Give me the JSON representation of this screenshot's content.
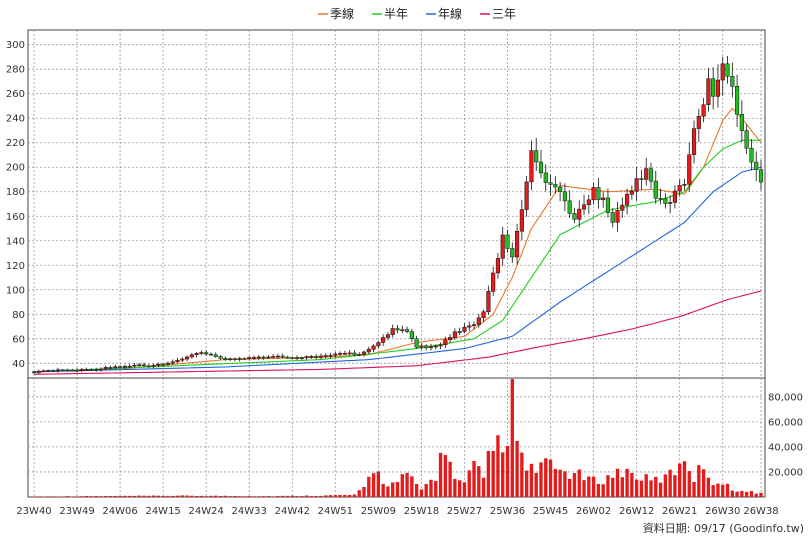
{
  "chart_data": {
    "type": "candlestick",
    "legend": {
      "placement": "top-center",
      "items": [
        {
          "name": "季線",
          "color": "#e8782a"
        },
        {
          "name": "半年",
          "color": "#22cc22"
        },
        {
          "name": "年線",
          "color": "#2266dd"
        },
        {
          "name": "三年",
          "color": "#dd1166"
        }
      ]
    },
    "price_axis": {
      "ticks": [
        40,
        60,
        80,
        100,
        120,
        140,
        160,
        180,
        200,
        220,
        240,
        260,
        280,
        300
      ],
      "range": [
        28,
        312
      ],
      "grid": true
    },
    "volume_axis": {
      "ticks": [
        "20,000",
        "40,000",
        "60,000",
        "80,000"
      ],
      "tick_values": [
        20000,
        40000,
        60000,
        80000
      ],
      "range": [
        0,
        95000
      ],
      "position": "right"
    },
    "x_ticks": [
      "23W40",
      "23W49",
      "24W06",
      "24W15",
      "24W24",
      "24W33",
      "24W42",
      "24W51",
      "25W09",
      "25W18",
      "25W27",
      "25W36",
      "25W45",
      "26W02",
      "26W12",
      "26W21",
      "26W30",
      "26W38"
    ],
    "x_tick_index": [
      0,
      9,
      18,
      27,
      36,
      45,
      54,
      63,
      72,
      81,
      90,
      99,
      108,
      117,
      126,
      135,
      144,
      152
    ],
    "weeks": 153,
    "close_anchors": [
      [
        0,
        33
      ],
      [
        10,
        35
      ],
      [
        20,
        37
      ],
      [
        30,
        42
      ],
      [
        35,
        48
      ],
      [
        40,
        44
      ],
      [
        50,
        45
      ],
      [
        60,
        46
      ],
      [
        68,
        48
      ],
      [
        72,
        58
      ],
      [
        75,
        68
      ],
      [
        78,
        65
      ],
      [
        80,
        52
      ],
      [
        85,
        56
      ],
      [
        88,
        66
      ],
      [
        92,
        70
      ],
      [
        94,
        80
      ],
      [
        96,
        112
      ],
      [
        98,
        145
      ],
      [
        100,
        130
      ],
      [
        102,
        170
      ],
      [
        104,
        210
      ],
      [
        106,
        190
      ],
      [
        110,
        175
      ],
      [
        113,
        160
      ],
      [
        117,
        185
      ],
      [
        119,
        170
      ],
      [
        121,
        155
      ],
      [
        125,
        180
      ],
      [
        128,
        200
      ],
      [
        130,
        180
      ],
      [
        133,
        172
      ],
      [
        136,
        185
      ],
      [
        138,
        230
      ],
      [
        140,
        250
      ],
      [
        141,
        280
      ],
      [
        142,
        260
      ],
      [
        144,
        285
      ],
      [
        146,
        270
      ],
      [
        148,
        230
      ],
      [
        150,
        200
      ],
      [
        151,
        195
      ],
      [
        152,
        183
      ]
    ],
    "sma_anchors": {
      "季線": [
        [
          0,
          33
        ],
        [
          20,
          36
        ],
        [
          40,
          43
        ],
        [
          60,
          45
        ],
        [
          70,
          47
        ],
        [
          80,
          57
        ],
        [
          90,
          62
        ],
        [
          96,
          80
        ],
        [
          100,
          110
        ],
        [
          104,
          150
        ],
        [
          110,
          185
        ],
        [
          120,
          180
        ],
        [
          130,
          182
        ],
        [
          136,
          178
        ],
        [
          140,
          200
        ],
        [
          144,
          238
        ],
        [
          146,
          248
        ],
        [
          148,
          240
        ],
        [
          152,
          220
        ]
      ],
      "半年": [
        [
          0,
          33
        ],
        [
          30,
          38
        ],
        [
          60,
          43
        ],
        [
          80,
          52
        ],
        [
          92,
          60
        ],
        [
          98,
          75
        ],
        [
          104,
          110
        ],
        [
          110,
          145
        ],
        [
          120,
          165
        ],
        [
          130,
          172
        ],
        [
          136,
          180
        ],
        [
          140,
          200
        ],
        [
          144,
          215
        ],
        [
          148,
          222
        ],
        [
          152,
          222
        ]
      ],
      "年線": [
        [
          0,
          33
        ],
        [
          40,
          37
        ],
        [
          70,
          43
        ],
        [
          90,
          52
        ],
        [
          100,
          62
        ],
        [
          110,
          90
        ],
        [
          120,
          115
        ],
        [
          130,
          140
        ],
        [
          136,
          155
        ],
        [
          142,
          180
        ],
        [
          148,
          196
        ],
        [
          152,
          200
        ]
      ],
      "三年": [
        [
          0,
          31
        ],
        [
          30,
          33
        ],
        [
          60,
          35
        ],
        [
          80,
          38
        ],
        [
          95,
          45
        ],
        [
          105,
          53
        ],
        [
          115,
          60
        ],
        [
          125,
          68
        ],
        [
          135,
          78
        ],
        [
          145,
          92
        ],
        [
          152,
          99
        ]
      ]
    },
    "volume_anchors": [
      [
        0,
        500
      ],
      [
        30,
        1200
      ],
      [
        50,
        800
      ],
      [
        62,
        1500
      ],
      [
        67,
        2000
      ],
      [
        69,
        8000
      ],
      [
        71,
        28000
      ],
      [
        73,
        15000
      ],
      [
        75,
        12000
      ],
      [
        78,
        20000
      ],
      [
        81,
        7000
      ],
      [
        84,
        20000
      ],
      [
        86,
        50000
      ],
      [
        88,
        15000
      ],
      [
        90,
        12000
      ],
      [
        92,
        28000
      ],
      [
        94,
        18000
      ],
      [
        96,
        58000
      ],
      [
        98,
        35000
      ],
      [
        99,
        48000
      ],
      [
        100,
        90000
      ],
      [
        101,
        58000
      ],
      [
        103,
        22000
      ],
      [
        106,
        30000
      ],
      [
        110,
        25000
      ],
      [
        114,
        20000
      ],
      [
        117,
        15000
      ],
      [
        120,
        18000
      ],
      [
        123,
        25000
      ],
      [
        126,
        20000
      ],
      [
        129,
        15000
      ],
      [
        132,
        18000
      ],
      [
        134,
        25000
      ],
      [
        136,
        40000
      ],
      [
        138,
        18000
      ],
      [
        140,
        30000
      ],
      [
        142,
        15000
      ],
      [
        145,
        10000
      ],
      [
        148,
        5000
      ],
      [
        152,
        4000
      ]
    ]
  },
  "footer": {
    "source": "資料日期: 09/17  (Goodinfo.tw)"
  }
}
